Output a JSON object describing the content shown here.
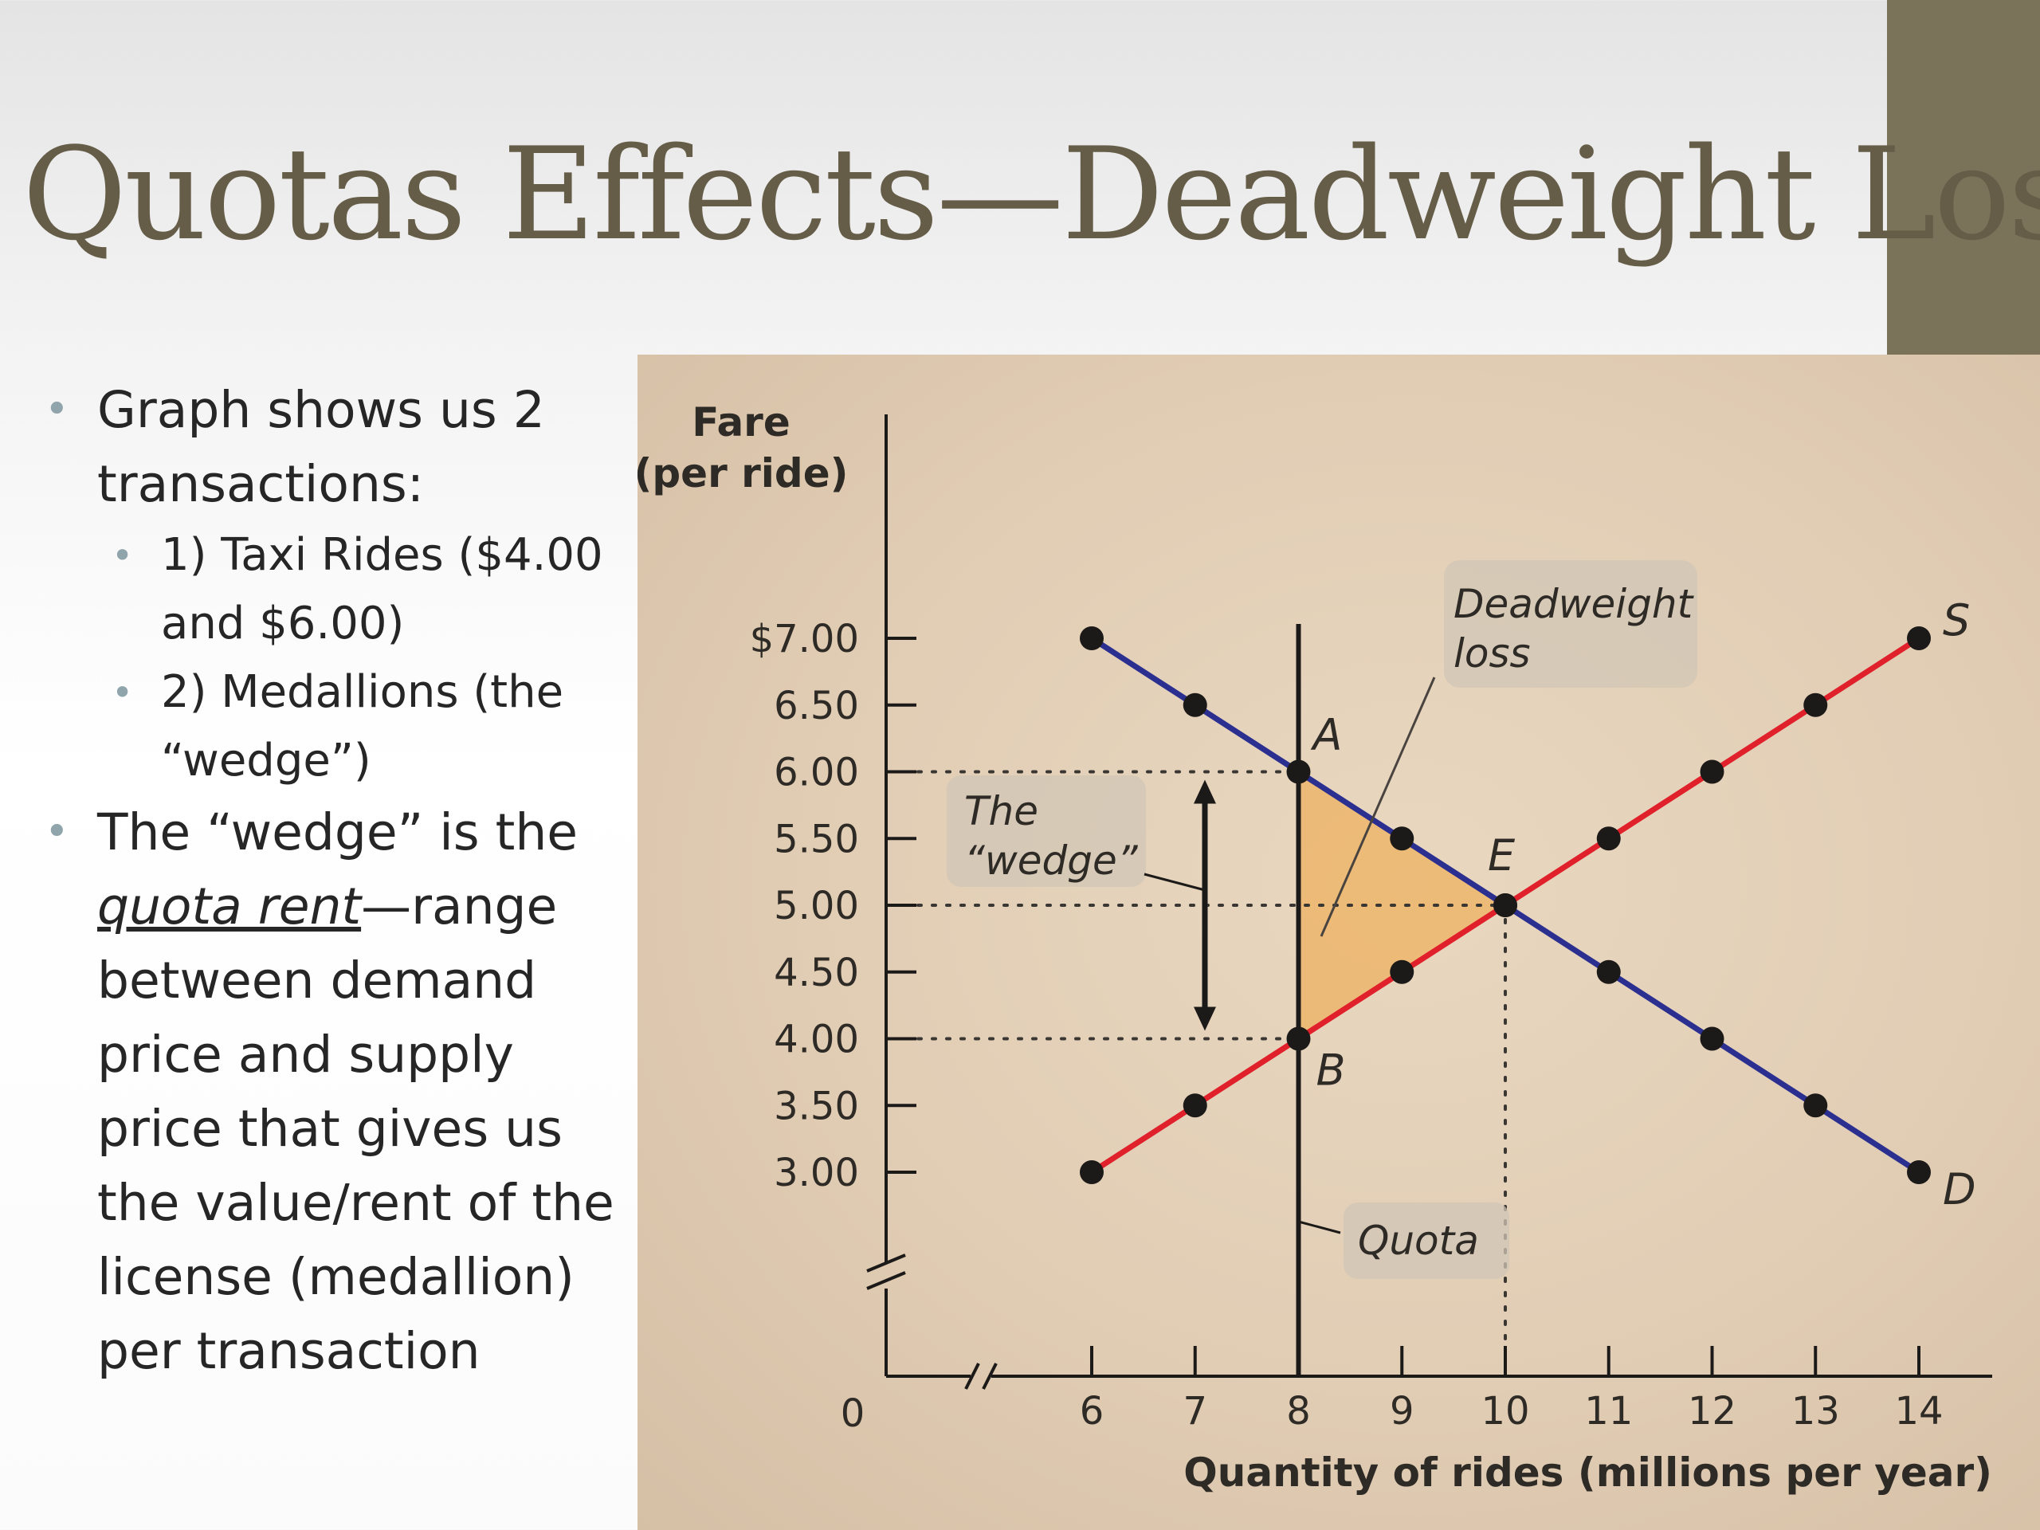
{
  "slide": {
    "title": "Quotas Effects—Deadweight Loss",
    "accent_color": "#7a7359"
  },
  "bullets": {
    "b1_text": "Graph shows us 2 transactions:",
    "b1_sub1": "1) Taxi Rides ($4.00 and $6.00)",
    "b1_sub2": "2) Medallions (the “wedge”)",
    "b2_pre": "The “wedge” is the ",
    "b2_underlined": "quota rent",
    "b2_post": "—range between demand price and supply price that gives us the value/rent of the license (medallion) per transaction"
  },
  "chart_data": {
    "type": "line",
    "ylabel": [
      "Fare",
      "(per ride)"
    ],
    "xlabel": "Quantity of rides (millions per year)",
    "origin_label": "0",
    "x_ticks": [
      6,
      7,
      8,
      9,
      10,
      11,
      12,
      13,
      14
    ],
    "x_tick_labels": [
      "6",
      "7",
      "8",
      "9",
      "10",
      "11",
      "12",
      "13",
      "14"
    ],
    "y_ticks": [
      3.0,
      3.5,
      4.0,
      4.5,
      5.0,
      5.5,
      6.0,
      6.5,
      7.0
    ],
    "y_tick_labels": [
      "3.00",
      "3.50",
      "4.00",
      "4.50",
      "5.00",
      "5.50",
      "6.00",
      "6.50",
      "$7.00"
    ],
    "xlim": [
      6,
      14
    ],
    "ylim": [
      3.0,
      7.0
    ],
    "axis_breaks": true,
    "grid": false,
    "series": [
      {
        "name": "D",
        "color": "#2b2f8f",
        "x": [
          6,
          7,
          8,
          9,
          10,
          11,
          12,
          13,
          14
        ],
        "y": [
          7.0,
          6.5,
          6.0,
          5.5,
          5.0,
          4.5,
          4.0,
          3.5,
          3.0
        ]
      },
      {
        "name": "S",
        "color": "#e0202a",
        "x": [
          6,
          7,
          8,
          9,
          10,
          11,
          12,
          13,
          14
        ],
        "y": [
          3.0,
          3.5,
          4.0,
          4.5,
          5.0,
          5.5,
          6.0,
          6.5,
          7.0
        ]
      }
    ],
    "quota": {
      "x": 8,
      "label": "Quota"
    },
    "points": [
      {
        "label": "A",
        "x": 8,
        "y": 6.0
      },
      {
        "label": "B",
        "x": 8,
        "y": 4.0
      },
      {
        "label": "E",
        "x": 10,
        "y": 5.0
      }
    ],
    "deadweight_loss": {
      "label": [
        "Deadweight",
        "loss"
      ],
      "color": "#f0a84a"
    },
    "wedge": {
      "label": [
        "The",
        "“wedge”"
      ],
      "from": 4.0,
      "to": 6.0
    }
  }
}
